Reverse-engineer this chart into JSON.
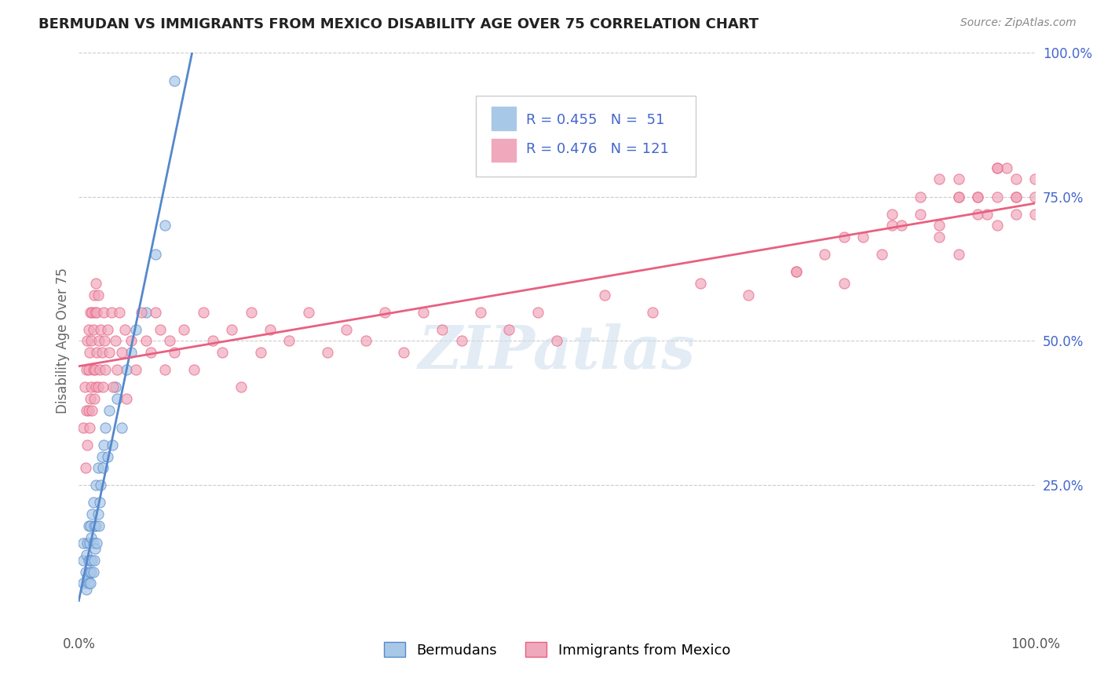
{
  "title": "BERMUDAN VS IMMIGRANTS FROM MEXICO DISABILITY AGE OVER 75 CORRELATION CHART",
  "source": "Source: ZipAtlas.com",
  "ylabel": "Disability Age Over 75",
  "bermudans_R": 0.455,
  "bermudans_N": 51,
  "mexico_R": 0.476,
  "mexico_N": 121,
  "legend_labels": [
    "Bermudans",
    "Immigrants from Mexico"
  ],
  "blue_color": "#A8C8E8",
  "pink_color": "#F0A8BC",
  "blue_line_color": "#5588CC",
  "pink_line_color": "#E86080",
  "blue_label_color": "#4466CC",
  "title_color": "#222222",
  "source_color": "#888888",
  "watermark_text": "ZIPatlas",
  "background_color": "#FFFFFF",
  "grid_color": "#CCCCCC",
  "xlim": [
    0,
    1
  ],
  "ylim": [
    0,
    1
  ],
  "bermudans_x": [
    0.005,
    0.005,
    0.005,
    0.007,
    0.008,
    0.008,
    0.009,
    0.009,
    0.01,
    0.01,
    0.01,
    0.011,
    0.011,
    0.012,
    0.012,
    0.012,
    0.013,
    0.013,
    0.014,
    0.014,
    0.015,
    0.015,
    0.015,
    0.016,
    0.016,
    0.017,
    0.018,
    0.018,
    0.019,
    0.02,
    0.02,
    0.021,
    0.022,
    0.023,
    0.024,
    0.025,
    0.026,
    0.028,
    0.03,
    0.032,
    0.035,
    0.038,
    0.04,
    0.045,
    0.05,
    0.055,
    0.06,
    0.07,
    0.08,
    0.09,
    0.1
  ],
  "bermudans_y": [
    0.08,
    0.12,
    0.15,
    0.1,
    0.07,
    0.13,
    0.09,
    0.15,
    0.08,
    0.12,
    0.18,
    0.1,
    0.15,
    0.08,
    0.12,
    0.18,
    0.1,
    0.16,
    0.12,
    0.2,
    0.1,
    0.15,
    0.22,
    0.12,
    0.18,
    0.14,
    0.18,
    0.25,
    0.15,
    0.2,
    0.28,
    0.18,
    0.22,
    0.25,
    0.3,
    0.28,
    0.32,
    0.35,
    0.3,
    0.38,
    0.32,
    0.42,
    0.4,
    0.35,
    0.45,
    0.48,
    0.52,
    0.55,
    0.65,
    0.7,
    0.95
  ],
  "mexico_x": [
    0.005,
    0.006,
    0.007,
    0.008,
    0.008,
    0.009,
    0.009,
    0.01,
    0.01,
    0.01,
    0.011,
    0.011,
    0.012,
    0.012,
    0.013,
    0.013,
    0.014,
    0.014,
    0.015,
    0.015,
    0.016,
    0.016,
    0.017,
    0.017,
    0.018,
    0.018,
    0.019,
    0.019,
    0.02,
    0.02,
    0.021,
    0.022,
    0.023,
    0.024,
    0.025,
    0.026,
    0.027,
    0.028,
    0.03,
    0.032,
    0.034,
    0.036,
    0.038,
    0.04,
    0.042,
    0.045,
    0.048,
    0.05,
    0.055,
    0.06,
    0.065,
    0.07,
    0.075,
    0.08,
    0.085,
    0.09,
    0.095,
    0.1,
    0.11,
    0.12,
    0.13,
    0.14,
    0.15,
    0.16,
    0.17,
    0.18,
    0.19,
    0.2,
    0.22,
    0.24,
    0.26,
    0.28,
    0.3,
    0.32,
    0.34,
    0.36,
    0.38,
    0.4,
    0.42,
    0.45,
    0.48,
    0.5,
    0.55,
    0.6,
    0.65,
    0.7,
    0.75,
    0.78,
    0.8,
    0.82,
    0.84,
    0.86,
    0.88,
    0.9,
    0.92,
    0.94,
    0.96,
    0.98,
    1.0,
    0.75,
    0.8,
    0.85,
    0.88,
    0.9,
    0.92,
    0.94,
    0.96,
    0.98,
    0.85,
    0.9,
    0.92,
    0.95,
    0.97,
    0.98,
    1.0,
    0.92,
    0.94,
    0.96,
    0.98,
    1.0,
    0.96
  ],
  "mexico_y": [
    0.35,
    0.42,
    0.28,
    0.38,
    0.45,
    0.32,
    0.5,
    0.38,
    0.45,
    0.52,
    0.35,
    0.48,
    0.4,
    0.55,
    0.42,
    0.5,
    0.38,
    0.55,
    0.45,
    0.52,
    0.4,
    0.58,
    0.45,
    0.55,
    0.42,
    0.6,
    0.48,
    0.55,
    0.42,
    0.58,
    0.5,
    0.45,
    0.52,
    0.48,
    0.42,
    0.55,
    0.5,
    0.45,
    0.52,
    0.48,
    0.55,
    0.42,
    0.5,
    0.45,
    0.55,
    0.48,
    0.52,
    0.4,
    0.5,
    0.45,
    0.55,
    0.5,
    0.48,
    0.55,
    0.52,
    0.45,
    0.5,
    0.48,
    0.52,
    0.45,
    0.55,
    0.5,
    0.48,
    0.52,
    0.42,
    0.55,
    0.48,
    0.52,
    0.5,
    0.55,
    0.48,
    0.52,
    0.5,
    0.55,
    0.48,
    0.55,
    0.52,
    0.5,
    0.55,
    0.52,
    0.55,
    0.5,
    0.58,
    0.55,
    0.6,
    0.58,
    0.62,
    0.65,
    0.6,
    0.68,
    0.65,
    0.7,
    0.72,
    0.68,
    0.75,
    0.72,
    0.7,
    0.78,
    0.75,
    0.62,
    0.68,
    0.72,
    0.75,
    0.7,
    0.65,
    0.75,
    0.8,
    0.72,
    0.7,
    0.78,
    0.75,
    0.72,
    0.8,
    0.75,
    0.72,
    0.78,
    0.75,
    0.8,
    0.75,
    0.78,
    0.75
  ]
}
